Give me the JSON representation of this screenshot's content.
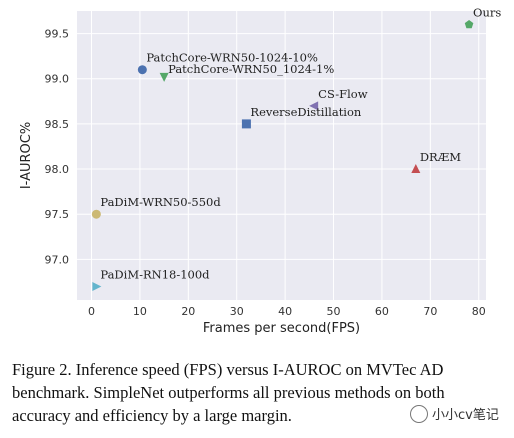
{
  "chart_data": {
    "type": "scatter",
    "xlabel": "Frames per second(FPS)",
    "ylabel": "I-AUROC%",
    "xlim": [
      -3,
      81.5
    ],
    "ylim": [
      96.55,
      99.75
    ],
    "xticks": [
      0,
      10,
      20,
      30,
      40,
      50,
      60,
      70,
      80
    ],
    "yticks": [
      97.0,
      97.5,
      98.0,
      98.5,
      99.0,
      99.5
    ],
    "xtick_labels": [
      "0",
      "10",
      "20",
      "30",
      "40",
      "50",
      "60",
      "70",
      "80"
    ],
    "ytick_labels": [
      "97.0",
      "97.5",
      "98.0",
      "98.5",
      "99.0",
      "99.5"
    ],
    "grid": true,
    "points": [
      {
        "label": "Ours",
        "x": 78,
        "y": 99.6,
        "marker": "pentagon",
        "color": "#55a868",
        "label_pos": "above-right"
      },
      {
        "label": "PatchCore-WRN50-1024-10%",
        "x": 10.5,
        "y": 99.1,
        "marker": "circle",
        "color": "#4c72b0",
        "label_pos": "above-right"
      },
      {
        "label": "PatchCore-WRN50_1024-1%",
        "x": 15,
        "y": 99.02,
        "marker": "triangle-down",
        "color": "#55a868",
        "label_pos": "right"
      },
      {
        "label": "CS-Flow",
        "x": 46,
        "y": 98.7,
        "marker": "triangle-left",
        "color": "#8172b2",
        "label_pos": "above-right"
      },
      {
        "label": "ReverseDistillation",
        "x": 32,
        "y": 98.5,
        "marker": "square",
        "color": "#4c72b0",
        "label_pos": "above-right"
      },
      {
        "label": "DRÆM",
        "x": 67,
        "y": 98.0,
        "marker": "triangle-up",
        "color": "#c44e52",
        "label_pos": "above-right"
      },
      {
        "label": "PaDiM-WRN50-550d",
        "x": 1,
        "y": 97.5,
        "marker": "circle",
        "color": "#ccb974",
        "label_pos": "above-right"
      },
      {
        "label": "PaDiM-RN18-100d",
        "x": 1,
        "y": 96.7,
        "marker": "triangle-right",
        "color": "#64b5cd",
        "label_pos": "above-right"
      }
    ]
  },
  "caption": "Figure 2. Inference speed (FPS) versus I-AUROC on MVTec AD benchmark. SimpleNet outperforms all previous methods on both accuracy and efficiency by a large margin.",
  "watermark": "小小cv笔记",
  "colors": {
    "panel": "#eaeaf2",
    "grid": "#ffffff",
    "text": "#222222"
  }
}
